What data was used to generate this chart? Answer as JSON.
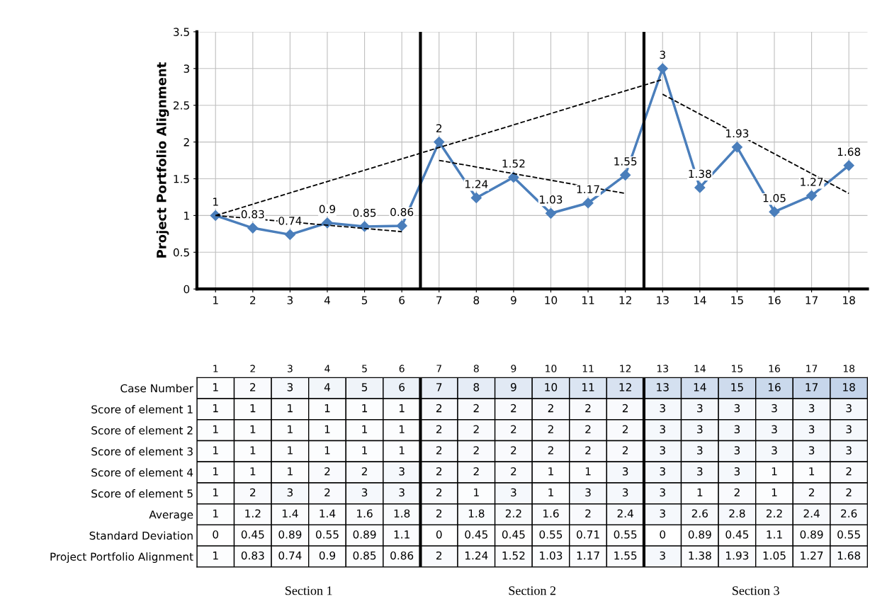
{
  "chart_data": [
    {
      "type": "line",
      "ylabel": "Project Portfolio Alignment",
      "x": [
        1,
        2,
        3,
        4,
        5,
        6,
        7,
        8,
        9,
        10,
        11,
        12,
        13,
        14,
        15,
        16,
        17,
        18
      ],
      "series": [
        {
          "color": "#4a7ebb",
          "values": [
            1,
            0.83,
            0.74,
            0.9,
            0.85,
            0.86,
            2,
            1.24,
            1.52,
            1.03,
            1.17,
            1.55,
            3,
            1.38,
            1.93,
            1.05,
            1.27,
            1.68
          ],
          "marker": "diamond",
          "value_labels": [
            "1",
            "0.83",
            "0.74",
            "0.9",
            "0.85",
            "0.86",
            "2",
            "1.24",
            "1.52",
            "1.03",
            "1.17",
            "1.55",
            "3",
            "1.38",
            "1.93",
            "1.05",
            "1.27",
            "1.68"
          ]
        },
        {
          "color": "#000000",
          "line_style": "dashed",
          "x": [
            1,
            6
          ],
          "values": [
            1,
            0.78
          ],
          "marker": "none"
        },
        {
          "color": "#000000",
          "line_style": "dashed",
          "x": [
            1,
            13
          ],
          "values": [
            1,
            2.85
          ],
          "marker": "none"
        },
        {
          "color": "#000000",
          "line_style": "dashed",
          "x": [
            7,
            12
          ],
          "values": [
            1.75,
            1.3
          ],
          "marker": "none"
        },
        {
          "color": "#000000",
          "line_style": "dashed",
          "x": [
            13,
            18
          ],
          "values": [
            2.65,
            1.3
          ],
          "marker": "none"
        }
      ],
      "xlim": [
        0.5,
        18.5
      ],
      "xticks": [
        1,
        2,
        3,
        4,
        5,
        6,
        7,
        8,
        9,
        10,
        11,
        12,
        13,
        14,
        15,
        16,
        17,
        18
      ],
      "ylim": [
        0,
        3.5
      ],
      "yticks": [
        0,
        0.5,
        1,
        1.5,
        2,
        2.5,
        3,
        3.5
      ],
      "grid": true,
      "ref_lines": [
        {
          "axis": "x",
          "value": 6.5,
          "color": "#000000"
        },
        {
          "axis": "x",
          "value": 12.5,
          "color": "#000000"
        }
      ]
    },
    {
      "type": "heatmap",
      "categories": [
        "1",
        "2",
        "3",
        "4",
        "5",
        "6",
        "7",
        "8",
        "9",
        "10",
        "11",
        "12",
        "13",
        "14",
        "15",
        "16",
        "17",
        "18"
      ],
      "y_categories": [
        "Case Number",
        "Score of element 1",
        "Score of element 2",
        "Score of element 3",
        "Score of element 4",
        "Score of element 5",
        "Average",
        "Standard Deviation",
        "Project Portfolio Alignment"
      ],
      "cells": [
        [
          1,
          2,
          3,
          4,
          5,
          6,
          7,
          8,
          9,
          10,
          11,
          12,
          13,
          14,
          15,
          16,
          17,
          18
        ],
        [
          1,
          1,
          1,
          1,
          1,
          1,
          2,
          2,
          2,
          2,
          2,
          2,
          3,
          3,
          3,
          3,
          3,
          3
        ],
        [
          1,
          1,
          1,
          1,
          1,
          1,
          2,
          2,
          2,
          2,
          2,
          2,
          3,
          3,
          3,
          3,
          3,
          3
        ],
        [
          1,
          1,
          1,
          1,
          1,
          1,
          2,
          2,
          2,
          2,
          2,
          2,
          3,
          3,
          3,
          3,
          3,
          3
        ],
        [
          1,
          1,
          1,
          2,
          2,
          3,
          2,
          2,
          2,
          1,
          1,
          3,
          3,
          3,
          3,
          1,
          1,
          2
        ],
        [
          1,
          2,
          3,
          2,
          3,
          3,
          2,
          1,
          3,
          1,
          3,
          3,
          3,
          1,
          2,
          1,
          2,
          2
        ],
        [
          1,
          1.2,
          1.4,
          1.4,
          1.6,
          1.8,
          2,
          1.8,
          2.2,
          1.6,
          2,
          2.4,
          3,
          2.6,
          2.8,
          2.2,
          2.4,
          2.6
        ],
        [
          0,
          0.45,
          0.89,
          0.55,
          0.89,
          1.1,
          0,
          0.45,
          0.45,
          0.55,
          0.71,
          0.55,
          0,
          0.89,
          0.45,
          1.1,
          0.89,
          0.55
        ],
        [
          1,
          0.83,
          0.74,
          0.9,
          0.85,
          0.86,
          2,
          1.24,
          1.52,
          1.03,
          1.17,
          1.55,
          3,
          1.38,
          1.93,
          1.05,
          1.27,
          1.68
        ]
      ],
      "data_labels": true,
      "annotations": [
        "Section 1",
        "Section 2",
        "Section 3"
      ]
    }
  ]
}
